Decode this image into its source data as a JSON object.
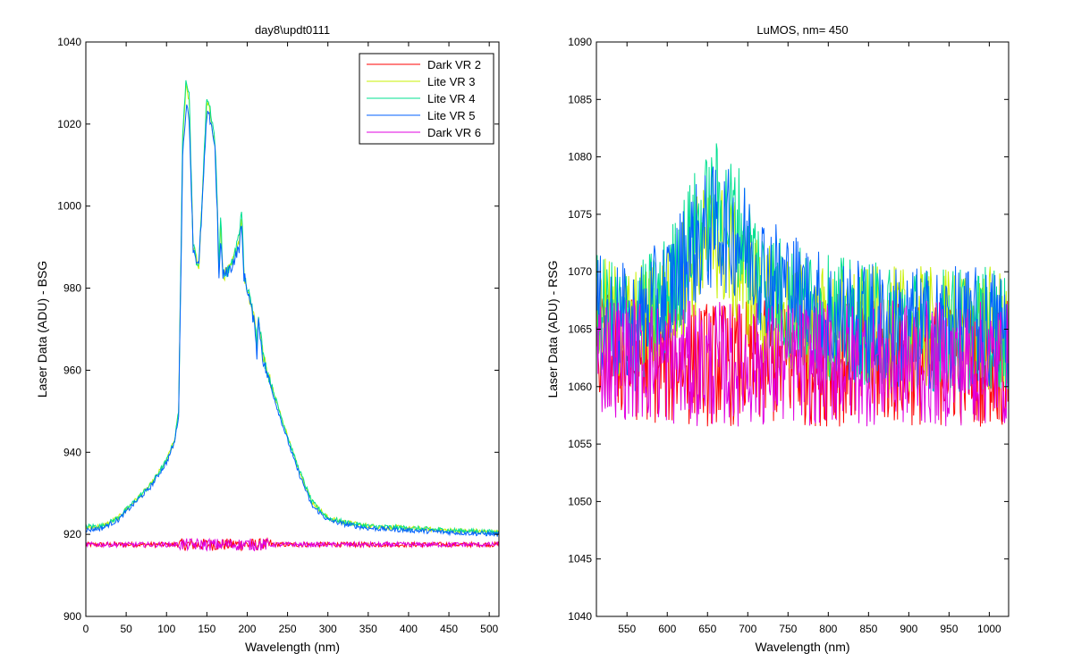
{
  "figure": {
    "background": "#ffffff"
  },
  "chart_data": [
    {
      "type": "line",
      "title": "day8\\updt0111",
      "xlabel": "Wavelength (nm)",
      "ylabel": "Laser Data (ADU) - BSG",
      "xlim": [
        0,
        512
      ],
      "ylim": [
        900,
        1040
      ],
      "xticks": [
        0,
        50,
        100,
        150,
        200,
        250,
        300,
        350,
        400,
        450,
        500
      ],
      "yticks": [
        900,
        920,
        940,
        960,
        980,
        1000,
        1020,
        1040
      ],
      "grid": false,
      "legend": "top-right",
      "series": [
        {
          "name": "Dark VR 2",
          "color": "#ff0000",
          "x": [
            0,
            100,
            200,
            300,
            400,
            512
          ],
          "y": [
            917.5,
            917.5,
            917.5,
            917.5,
            917.5,
            917.5
          ]
        },
        {
          "name": "Lite VR 3",
          "color": "#c8f000",
          "x": [
            0,
            20,
            40,
            60,
            80,
            100,
            110,
            115,
            120,
            124,
            128,
            133,
            140,
            150,
            155,
            160,
            163,
            165,
            167,
            170,
            180,
            190,
            193,
            196,
            200,
            210,
            212,
            214,
            220,
            240,
            260,
            280,
            300,
            320,
            350,
            400,
            450,
            512
          ],
          "y": [
            921.5,
            922,
            924,
            928,
            932,
            938,
            943,
            950,
            1015,
            1030,
            1026,
            990,
            985,
            1025,
            1022,
            1015,
            1000,
            985,
            995,
            983,
            985,
            992,
            998,
            983,
            980,
            972,
            966,
            973,
            963,
            950,
            938,
            928,
            924,
            923,
            922,
            921.5,
            921,
            920.5
          ]
        },
        {
          "name": "Lite VR 4",
          "color": "#00e090",
          "x": [
            0,
            20,
            40,
            60,
            80,
            100,
            110,
            115,
            120,
            124,
            128,
            133,
            140,
            150,
            155,
            160,
            163,
            165,
            167,
            170,
            180,
            190,
            193,
            196,
            200,
            210,
            212,
            214,
            220,
            240,
            260,
            280,
            300,
            320,
            350,
            400,
            450,
            512
          ],
          "y": [
            922,
            922,
            924,
            928,
            932,
            938,
            943,
            950,
            1016,
            1032,
            1028,
            990,
            985,
            1027,
            1023,
            1016,
            1000,
            985,
            998,
            983,
            985,
            993,
            1000,
            983,
            980,
            972,
            966,
            974,
            963,
            950,
            938,
            928,
            924,
            923,
            922,
            921.5,
            921,
            920.5
          ]
        },
        {
          "name": "Lite VR 5",
          "color": "#0060ff",
          "x": [
            0,
            20,
            40,
            60,
            80,
            100,
            110,
            115,
            120,
            124,
            128,
            133,
            140,
            150,
            155,
            160,
            163,
            165,
            167,
            170,
            180,
            190,
            193,
            196,
            200,
            210,
            212,
            214,
            220,
            240,
            260,
            280,
            300,
            320,
            350,
            400,
            450,
            512
          ],
          "y": [
            921,
            921.5,
            923.5,
            927.5,
            931.5,
            937.5,
            942.5,
            949,
            1012,
            1024,
            1022,
            990,
            985,
            1022,
            1021,
            1014,
            998,
            981,
            992,
            983,
            985,
            990,
            995,
            983,
            980,
            970,
            964,
            972,
            962,
            949,
            937,
            927,
            923.5,
            922.5,
            921.5,
            921,
            920.5,
            920
          ]
        },
        {
          "name": "Dark VR 6",
          "color": "#e000e0",
          "x": [
            0,
            100,
            200,
            300,
            400,
            512
          ],
          "y": [
            917.5,
            917.5,
            917.5,
            917.5,
            917.5,
            917.5
          ]
        }
      ]
    },
    {
      "type": "line",
      "title": "LuMOS, nm= 450",
      "xlabel": "Wavelength (nm)",
      "ylabel": "Laser Data (ADU) - RSG",
      "xlim": [
        512,
        1024
      ],
      "ylim": [
        1040,
        1090
      ],
      "xticks": [
        550,
        600,
        650,
        700,
        750,
        800,
        850,
        900,
        950,
        1000
      ],
      "yticks": [
        1040,
        1045,
        1050,
        1055,
        1060,
        1065,
        1070,
        1075,
        1080,
        1085,
        1090
      ],
      "grid": false,
      "legend": "none",
      "series": [
        {
          "color": "#ff0000",
          "x": [
            512,
            600,
            700,
            800,
            900,
            1024
          ],
          "y": [
            1063,
            1062,
            1062,
            1062,
            1062,
            1062
          ]
        },
        {
          "color": "#c8f000",
          "x": [
            512,
            560,
            600,
            630,
            660,
            690,
            720,
            760,
            800,
            900,
            1024
          ],
          "y": [
            1066,
            1065,
            1067,
            1071,
            1073,
            1070,
            1067,
            1066,
            1065,
            1065,
            1065
          ]
        },
        {
          "color": "#00e090",
          "x": [
            512,
            560,
            600,
            630,
            660,
            690,
            720,
            760,
            800,
            900,
            1024
          ],
          "y": [
            1066,
            1065,
            1068,
            1073,
            1076,
            1074,
            1069,
            1067,
            1066,
            1065,
            1065
          ]
        },
        {
          "color": "#0060ff",
          "x": [
            512,
            560,
            600,
            630,
            660,
            690,
            720,
            760,
            800,
            900,
            1024
          ],
          "y": [
            1066,
            1065,
            1068,
            1072,
            1074,
            1073,
            1070,
            1068,
            1066,
            1065,
            1065
          ]
        },
        {
          "color": "#e000e0",
          "x": [
            512,
            600,
            700,
            800,
            900,
            1024
          ],
          "y": [
            1063,
            1062,
            1062,
            1062,
            1062,
            1062
          ]
        }
      ]
    }
  ]
}
